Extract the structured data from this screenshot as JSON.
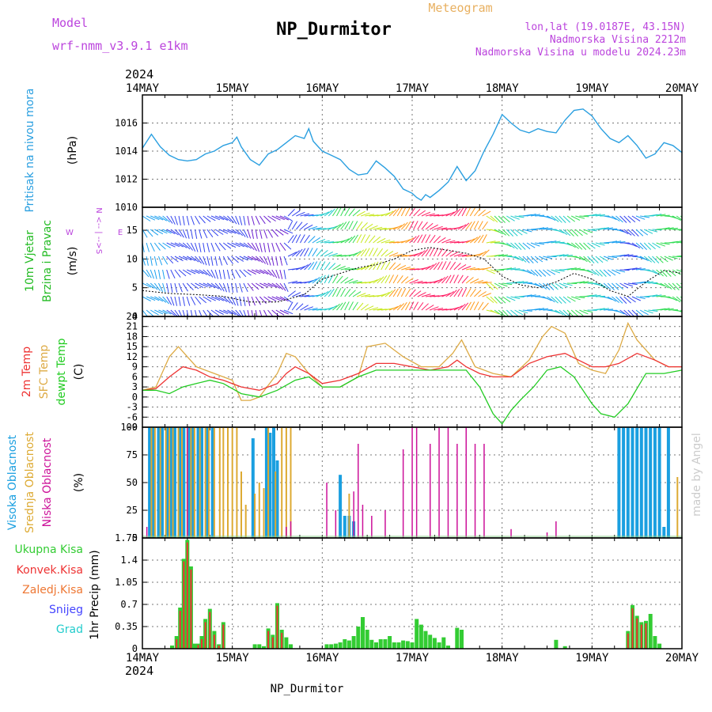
{
  "header": {
    "model_label": "Model",
    "model_value": "wrf-nmm_v3.9.1 e1km",
    "title": "NP_Durmitor",
    "meteogram": "Meteogram",
    "lonlat": "lon,lat (19.0187E, 43.15N)",
    "elevation": "Nadmorska Visina 2212m",
    "model_elevation": "Nadmorska Visina u modelu 2024.23m",
    "year_top": "2024",
    "year_bottom": "2024",
    "footer": "NP_Durmitor",
    "watermark": "made by Angel"
  },
  "colors": {
    "pressure": "#2a9fe0",
    "wind_label": "#22bb22",
    "temp2m": "#ee3333",
    "sfc": "#ddaa44",
    "dewpt": "#22cc22",
    "high": "#1a9fe0",
    "mid": "#ddaa33",
    "low": "#cc1199",
    "precip_total": "#33cc33",
    "precip_conv": "#ee3333",
    "precip_ice": "#ee7733",
    "snow": "#4444ff",
    "grad": "#22cccc",
    "wind_dir": "#bb44dd"
  },
  "chart_data": [
    {
      "type": "line",
      "panel": "pressure",
      "title": "Pritisak na nivou mora",
      "ylabel": "(hPa)",
      "ylim": [
        1010,
        1018
      ],
      "yticks": [
        "1010",
        "1012",
        "1014",
        "1016"
      ],
      "xticks": [
        "14MAY",
        "15MAY",
        "16MAY",
        "17MAY",
        "18MAY",
        "19MAY",
        "20MAY"
      ],
      "xlim_days": [
        0,
        6
      ],
      "grid": true,
      "series": [
        {
          "values_x": [
            0,
            0.1,
            0.2,
            0.3,
            0.4,
            0.5,
            0.6,
            0.7,
            0.8,
            0.9,
            1.0,
            1.05,
            1.1,
            1.2,
            1.3,
            1.4,
            1.5,
            1.6,
            1.7,
            1.8,
            1.85,
            1.9,
            2.0,
            2.1,
            2.2,
            2.3,
            2.4,
            2.5,
            2.6,
            2.7,
            2.8,
            2.9,
            3.0,
            3.05,
            3.1,
            3.15,
            3.2,
            3.3,
            3.4,
            3.5,
            3.6,
            3.7,
            3.8,
            3.9,
            4.0,
            4.1,
            4.2,
            4.3,
            4.4,
            4.5,
            4.6,
            4.7,
            4.8,
            4.9,
            5.0,
            5.1,
            5.2,
            5.3,
            5.4,
            5.5,
            5.6,
            5.7,
            5.8,
            5.9,
            6.0
          ],
          "values_y": [
            1014.2,
            1015.2,
            1014.3,
            1013.7,
            1013.4,
            1013.3,
            1013.4,
            1013.8,
            1014.0,
            1014.4,
            1014.6,
            1015.0,
            1014.3,
            1013.4,
            1013.0,
            1013.8,
            1014.1,
            1014.6,
            1015.1,
            1014.9,
            1015.6,
            1014.7,
            1014.0,
            1013.7,
            1013.4,
            1012.7,
            1012.3,
            1012.4,
            1013.3,
            1012.8,
            1012.2,
            1011.3,
            1011.0,
            1010.7,
            1010.5,
            1010.9,
            1010.7,
            1011.2,
            1011.8,
            1012.9,
            1011.9,
            1012.6,
            1014.0,
            1015.2,
            1016.6,
            1016.0,
            1015.5,
            1015.3,
            1015.6,
            1015.4,
            1015.3,
            1016.2,
            1016.9,
            1017.0,
            1016.5,
            1015.6,
            1014.9,
            1014.6,
            1015.1,
            1014.4,
            1013.5,
            1013.8,
            1014.6,
            1014.4,
            1013.9
          ]
        }
      ]
    },
    {
      "type": "line",
      "panel": "wind",
      "title": "10m Vjetar Brzina i Pravac",
      "ylabel": "(m/s)",
      "ylim": [
        0,
        19
      ],
      "yticks": [
        "0",
        "5",
        "10",
        "15"
      ],
      "direction_key": [
        "N",
        "W",
        "<-- | -->",
        "E",
        "S"
      ],
      "grid": true,
      "series": [
        {
          "name": "speed",
          "values_x": [
            0,
            0.3,
            0.6,
            0.9,
            1.2,
            1.5,
            1.8,
            2.0,
            2.2,
            2.4,
            2.6,
            2.8,
            3.0,
            3.2,
            3.4,
            3.6,
            3.8,
            4.0,
            4.2,
            4.4,
            4.6,
            4.8,
            5.0,
            5.2,
            5.4,
            5.6,
            5.8,
            6.0
          ],
          "values_y": [
            4.5,
            4.0,
            3.8,
            3.5,
            2.5,
            2.5,
            3.8,
            6.5,
            7.5,
            8.5,
            9.0,
            10.0,
            11.5,
            12.0,
            11.5,
            11.0,
            10.0,
            7.0,
            5.5,
            5.0,
            6.0,
            7.5,
            6.5,
            4.5,
            3.5,
            6.0,
            8.0,
            7.5
          ]
        }
      ]
    },
    {
      "type": "line",
      "panel": "temperature",
      "title": [
        "2m Temp",
        "SFC Temp",
        "dewpt Temp"
      ],
      "ylabel": "(C)",
      "ylim": [
        -9,
        24
      ],
      "yticks": [
        "-9",
        "-6",
        "-3",
        "0",
        "3",
        "6",
        "9",
        "12",
        "15",
        "18",
        "21",
        "24"
      ],
      "grid": true,
      "series": [
        {
          "name": "2m Temp",
          "values_x": [
            0,
            0.15,
            0.3,
            0.45,
            0.6,
            0.75,
            0.9,
            1.1,
            1.3,
            1.5,
            1.6,
            1.7,
            1.85,
            2.0,
            2.2,
            2.4,
            2.6,
            2.8,
            3.0,
            3.2,
            3.4,
            3.5,
            3.6,
            3.75,
            3.9,
            4.1,
            4.3,
            4.5,
            4.7,
            4.85,
            5.0,
            5.15,
            5.3,
            5.5,
            5.7,
            5.85,
            6.0
          ],
          "values_y": [
            2,
            2.5,
            6,
            9,
            8,
            6,
            5,
            3,
            2,
            4,
            7,
            9,
            7,
            4,
            5,
            7,
            10,
            10,
            9,
            8,
            9,
            11,
            9,
            7,
            6,
            6,
            10,
            12,
            13,
            11,
            9,
            9,
            10,
            13,
            11,
            9,
            9
          ]
        },
        {
          "name": "SFC Temp",
          "values_x": [
            0,
            0.15,
            0.3,
            0.4,
            0.5,
            0.6,
            0.8,
            1.0,
            1.1,
            1.2,
            1.3,
            1.5,
            1.6,
            1.7,
            1.85,
            2.0,
            2.2,
            2.4,
            2.5,
            2.7,
            2.9,
            3.1,
            3.3,
            3.45,
            3.55,
            3.7,
            3.9,
            4.1,
            4.3,
            4.45,
            4.55,
            4.7,
            4.85,
            5.0,
            5.15,
            5.3,
            5.4,
            5.5,
            5.7,
            5.85,
            6.0
          ],
          "values_y": [
            2,
            3,
            12,
            15,
            12,
            9,
            7,
            5,
            -1,
            -1,
            0,
            7,
            13,
            12,
            7,
            3,
            3,
            6,
            15,
            16,
            12,
            9,
            9,
            13,
            17,
            9,
            7,
            6,
            11,
            18,
            21,
            19,
            10,
            8,
            7,
            14,
            22,
            17,
            11,
            9,
            9
          ]
        },
        {
          "name": "dewpt Temp",
          "values_x": [
            0,
            0.15,
            0.3,
            0.45,
            0.6,
            0.75,
            0.9,
            1.1,
            1.3,
            1.5,
            1.7,
            1.85,
            2.0,
            2.2,
            2.4,
            2.6,
            2.8,
            3.0,
            3.2,
            3.4,
            3.5,
            3.6,
            3.75,
            3.9,
            4.0,
            4.1,
            4.2,
            4.35,
            4.5,
            4.65,
            4.8,
            5.0,
            5.1,
            5.25,
            5.4,
            5.6,
            5.8,
            6.0
          ],
          "values_y": [
            2,
            2,
            1,
            3,
            4,
            5,
            4,
            1,
            0,
            2,
            5,
            6,
            3,
            3,
            6,
            8,
            8,
            8,
            8,
            8,
            8,
            8,
            3,
            -5,
            -8,
            -4,
            -1,
            3,
            8,
            9,
            6,
            -2,
            -5,
            -6,
            -2,
            7,
            7,
            8
          ]
        }
      ]
    },
    {
      "type": "bar",
      "panel": "cloud",
      "title": [
        "Visoka Oblacnost",
        "Srednja Oblacnost",
        "Niska Oblacnost"
      ],
      "ylabel": "(%)",
      "ylim": [
        0,
        100
      ],
      "yticks": [
        "0",
        "25",
        "50",
        "75",
        "100"
      ],
      "grid": true,
      "series": [
        {
          "name": "Visoka Oblacnost",
          "values_x": [
            0.08,
            0.12,
            0.18,
            0.22,
            0.28,
            0.32,
            0.36,
            0.42,
            0.46,
            0.52,
            0.56,
            0.62,
            0.66,
            0.72,
            0.78,
            1.23,
            1.38,
            1.42,
            1.46,
            1.5,
            2.2,
            2.25,
            2.3,
            2.35,
            5.3,
            5.35,
            5.4,
            5.45,
            5.5,
            5.55,
            5.6,
            5.65,
            5.7,
            5.75,
            5.8,
            5.85
          ],
          "values_y": [
            100,
            100,
            100,
            100,
            100,
            100,
            100,
            100,
            100,
            100,
            100,
            100,
            100,
            100,
            100,
            90,
            100,
            95,
            100,
            70,
            57,
            20,
            20,
            15,
            100,
            100,
            100,
            100,
            100,
            100,
            100,
            100,
            100,
            100,
            10,
            100
          ]
        },
        {
          "name": "Srednja Oblacnost",
          "values_x": [
            0.1,
            0.14,
            0.2,
            0.26,
            0.3,
            0.34,
            0.4,
            0.44,
            0.5,
            0.54,
            0.58,
            0.64,
            0.7,
            0.74,
            0.8,
            0.86,
            0.9,
            0.95,
            1.0,
            1.05,
            1.1,
            1.15,
            1.25,
            1.3,
            1.35,
            1.4,
            1.48,
            1.55,
            1.6,
            1.65,
            2.3,
            5.95
          ],
          "values_y": [
            100,
            100,
            100,
            100,
            100,
            100,
            100,
            100,
            100,
            100,
            100,
            100,
            100,
            100,
            100,
            100,
            100,
            100,
            100,
            100,
            60,
            30,
            40,
            50,
            45,
            100,
            60,
            100,
            100,
            100,
            40,
            55
          ]
        },
        {
          "name": "Niska Oblacnost",
          "values_x": [
            0.05,
            0.5,
            1.6,
            1.65,
            2.05,
            2.15,
            2.35,
            2.4,
            2.45,
            2.55,
            2.7,
            2.9,
            3.0,
            3.05,
            3.2,
            3.3,
            3.4,
            3.5,
            3.6,
            3.7,
            3.8,
            4.1,
            4.5,
            4.6
          ],
          "values_y": [
            10,
            100,
            10,
            15,
            50,
            25,
            42,
            85,
            30,
            20,
            25,
            80,
            100,
            100,
            85,
            100,
            100,
            85,
            100,
            85,
            85,
            8,
            5,
            15
          ]
        }
      ]
    },
    {
      "type": "bar",
      "panel": "precip",
      "title": [
        "Ukupna Kisa",
        "Konvek.Kisa",
        "Zaledj.Kisa",
        "Snijeg",
        "Grad"
      ],
      "ylabel": "1hr Precip (mm)",
      "ylim": [
        0,
        1.75
      ],
      "yticks": [
        "0",
        "0.35",
        "0.7",
        "1.05",
        "1.4",
        "1.75"
      ],
      "xticks": [
        "14MAY",
        "15MAY",
        "16MAY",
        "17MAY",
        "18MAY",
        "19MAY",
        "20MAY"
      ],
      "grid": true,
      "series": [
        {
          "name": "Ukupna Kisa",
          "values_x": [
            0.33,
            0.38,
            0.42,
            0.46,
            0.5,
            0.54,
            0.58,
            0.62,
            0.66,
            0.7,
            0.75,
            0.8,
            0.85,
            0.9,
            1.25,
            1.3,
            1.35,
            1.4,
            1.45,
            1.5,
            1.55,
            1.6,
            1.65,
            2.05,
            2.1,
            2.15,
            2.2,
            2.25,
            2.3,
            2.35,
            2.4,
            2.45,
            2.5,
            2.55,
            2.6,
            2.65,
            2.7,
            2.75,
            2.8,
            2.85,
            2.9,
            2.95,
            3.0,
            3.05,
            3.1,
            3.15,
            3.2,
            3.25,
            3.3,
            3.35,
            3.4,
            3.5,
            3.55,
            4.6,
            4.7,
            5.4,
            5.45,
            5.5,
            5.55,
            5.6,
            5.65,
            5.7,
            5.75
          ],
          "values_y": [
            0.05,
            0.2,
            0.65,
            1.42,
            1.72,
            1.3,
            0.08,
            0.08,
            0.2,
            0.47,
            0.63,
            0.28,
            0.07,
            0.42,
            0.07,
            0.07,
            0.04,
            0.32,
            0.22,
            0.72,
            0.3,
            0.18,
            0.07,
            0.07,
            0.07,
            0.08,
            0.1,
            0.15,
            0.13,
            0.2,
            0.35,
            0.5,
            0.3,
            0.14,
            0.1,
            0.15,
            0.15,
            0.2,
            0.1,
            0.1,
            0.13,
            0.12,
            0.1,
            0.47,
            0.38,
            0.28,
            0.22,
            0.17,
            0.1,
            0.18,
            0.05,
            0.33,
            0.3,
            0.14,
            0.04,
            0.28,
            0.69,
            0.52,
            0.42,
            0.44,
            0.55,
            0.2,
            0.08
          ]
        },
        {
          "name": "Konvek.Kisa",
          "values_x": [
            0.38,
            0.42,
            0.46,
            0.5,
            0.54,
            0.62,
            0.66,
            0.7,
            0.75,
            0.8,
            0.85,
            0.9,
            1.4,
            1.45,
            1.5,
            1.55,
            5.4,
            5.45,
            5.5,
            5.55,
            5.6
          ],
          "values_y": [
            0.15,
            0.6,
            1.38,
            1.68,
            1.25,
            0.06,
            0.15,
            0.42,
            0.58,
            0.22,
            0.05,
            0.38,
            0.28,
            0.18,
            0.68,
            0.25,
            0.24,
            0.64,
            0.48,
            0.38,
            0.4
          ]
        }
      ]
    }
  ]
}
